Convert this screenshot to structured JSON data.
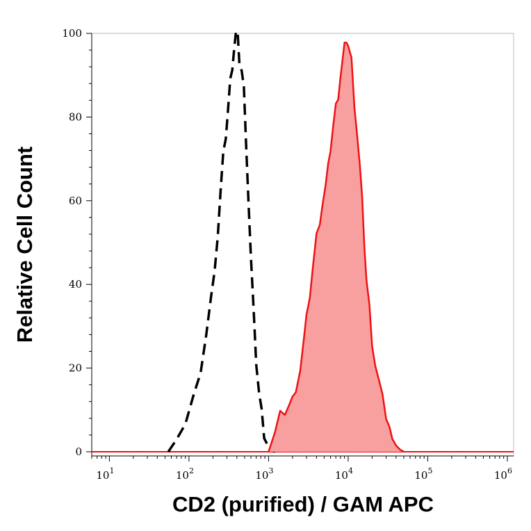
{
  "chart_data": {
    "type": "area",
    "title": "",
    "xlabel": "CD2 (purified) / GAM APC",
    "ylabel": "Relative Cell Count",
    "x_scale": "log",
    "xlim": [
      6,
      1200000
    ],
    "ylim": [
      -1,
      100
    ],
    "x_ticks": [
      {
        "value": 10,
        "base": "10",
        "exp": "1"
      },
      {
        "value": 100,
        "base": "10",
        "exp": "2"
      },
      {
        "value": 1000,
        "base": "10",
        "exp": "3"
      },
      {
        "value": 10000,
        "base": "10",
        "exp": "4"
      },
      {
        "value": 100000,
        "base": "10",
        "exp": "5"
      },
      {
        "value": 1000000,
        "base": "10",
        "exp": "6"
      }
    ],
    "y_ticks": [
      0,
      20,
      40,
      60,
      80,
      100
    ],
    "grid": false,
    "colors": {
      "stained": "#ee1111",
      "stained_fill": "#f8a0a0",
      "control": "#000000"
    },
    "series": [
      {
        "style": "dashed-outline",
        "x": [
          55,
          70,
          90,
          115,
          140,
          165,
          190,
          210,
          230,
          250,
          270,
          290,
          310,
          330,
          350,
          370,
          390,
          410,
          430,
          460,
          490,
          520,
          560,
          600,
          650,
          700,
          760,
          820,
          880,
          950,
          1050,
          1200
        ],
        "y": [
          0,
          3,
          6,
          12,
          20,
          28,
          36,
          45,
          52,
          62,
          70,
          76,
          82,
          88,
          93,
          97,
          100,
          98,
          94,
          91,
          86,
          76,
          60,
          46,
          32,
          22,
          14,
          9,
          5,
          2,
          0.5,
          0
        ]
      },
      {
        "style": "filled",
        "x": [
          1000,
          1200,
          1400,
          1600,
          1800,
          2000,
          2200,
          2500,
          2800,
          3000,
          3300,
          3600,
          4000,
          4400,
          4800,
          5200,
          5600,
          6000,
          6500,
          7000,
          7500,
          8000,
          8500,
          9000,
          9500,
          10000,
          11000,
          12000,
          13000,
          14000,
          15000,
          16000,
          17000,
          18500,
          20000,
          22000,
          24000,
          27000,
          30000,
          33000,
          36000,
          40000,
          45000,
          50000
        ],
        "y": [
          0,
          4,
          8,
          10,
          11,
          12,
          16,
          20,
          27,
          31,
          38,
          44,
          51,
          56,
          60,
          63,
          67,
          73,
          78,
          82,
          86,
          90,
          93,
          96,
          99,
          97,
          93,
          84,
          76,
          68,
          59,
          50,
          41,
          34,
          27,
          21,
          17,
          12,
          9,
          6,
          3,
          1.5,
          0.5,
          0
        ]
      }
    ]
  }
}
